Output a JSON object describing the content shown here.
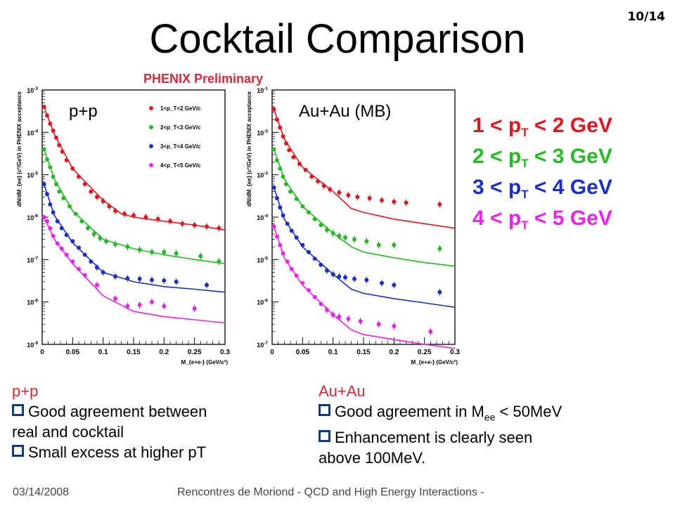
{
  "slide": {
    "title": "Cocktail Comparison",
    "page": "10/14",
    "preliminary": "PHENIX Preliminary"
  },
  "legend_big": [
    {
      "pre": "1 < p",
      "sub": "T",
      "post": " < 2 GeV",
      "color": "#e8141c"
    },
    {
      "pre": "2 < p",
      "sub": "T",
      "post": " < 3 GeV",
      "color": "#22bb22"
    },
    {
      "pre": "3 < p",
      "sub": "T",
      "post": " < 4 GeV",
      "color": "#1a2fc9"
    },
    {
      "pre": "4 < p",
      "sub": "T",
      "post": " < 5 GeV",
      "color": "#ee22ee"
    }
  ],
  "bottom_left": {
    "heading": "p+p",
    "bullets": [
      "Good agreement between",
      "Small excess at higher pT"
    ],
    "continuation": "real and cocktail"
  },
  "bottom_right": {
    "heading": "Au+Au",
    "bullet1_pre": "Good agreement in M",
    "bullet1_sub": "ee",
    "bullet1_post": " < 50MeV",
    "bullet2": "Enhancement is clearly seen",
    "continuation": "above 100MeV."
  },
  "footer": {
    "date": "03/14/2008",
    "conference": "Rencontres de Moriond - QCD and High Energy Interactions -"
  },
  "chart_data": [
    {
      "type": "scatter",
      "label": "p+p",
      "xlabel": "M_{e+e-} (GeV/c²)",
      "ylabel": "dN/dM_{ee} (c²/GeV) in PHENIX acceptance",
      "xlim": [
        0,
        0.3
      ],
      "ylim": [
        1e-09,
        0.001
      ],
      "log_y": true,
      "x_ticks": [
        "0",
        "0.05",
        "0.1",
        "0.15",
        "0.2",
        "0.25",
        "0.3"
      ],
      "y_ticks": [
        "10^-9",
        "10^-8",
        "10^-7",
        "10^-6",
        "10^-5",
        "10^-4",
        "10^-3"
      ],
      "legend_entries": [
        "1<p_T<2 GeV/c",
        "2<p_T<3 GeV/c",
        "3<p_T<4 GeV/c",
        "4<p_T<5 GeV/c"
      ],
      "legend_placement": "top-right",
      "series": [
        {
          "name": "1<p_T<2 GeV/c",
          "color": "#e8141c",
          "x": [
            0.003,
            0.008,
            0.013,
            0.018,
            0.023,
            0.028,
            0.033,
            0.04,
            0.05,
            0.06,
            0.07,
            0.08,
            0.09,
            0.1,
            0.11,
            0.12,
            0.135,
            0.15,
            0.17,
            0.19,
            0.21,
            0.23,
            0.25,
            0.27,
            0.29
          ],
          "y": [
            0.0004,
            0.00025,
            0.00016,
            0.00011,
            7.5e-05,
            5e-05,
            3.5e-05,
            2.2e-05,
            1.4e-05,
            9e-06,
            6e-06,
            4e-06,
            3e-06,
            2.4e-06,
            1.8e-06,
            1.4e-06,
            1.2e-06,
            1.1e-06,
            1e-06,
            9e-07,
            8e-07,
            7e-07,
            6.5e-07,
            6e-07,
            5.5e-07
          ],
          "cocktail": [
            [
              0.003,
              0.0004
            ],
            [
              0.02,
              9e-05
            ],
            [
              0.05,
              1.4e-05
            ],
            [
              0.1,
              2.5e-06
            ],
            [
              0.13,
              1.2e-06
            ],
            [
              0.15,
              1e-06
            ],
            [
              0.2,
              8e-07
            ],
            [
              0.25,
              6.5e-07
            ],
            [
              0.3,
              5e-07
            ]
          ]
        },
        {
          "name": "2<p_T<3 GeV/c",
          "color": "#22bb22",
          "x": [
            0.003,
            0.008,
            0.013,
            0.018,
            0.023,
            0.028,
            0.035,
            0.045,
            0.055,
            0.065,
            0.075,
            0.085,
            0.095,
            0.105,
            0.12,
            0.14,
            0.16,
            0.18,
            0.2,
            0.22,
            0.26,
            0.29
          ],
          "y": [
            4e-05,
            2.3e-05,
            1.5e-05,
            9e-06,
            6e-06,
            4e-06,
            2.8e-06,
            1.8e-06,
            1.2e-06,
            8e-07,
            5.5e-07,
            4e-07,
            3.2e-07,
            2.7e-07,
            2.3e-07,
            2e-07,
            1.7e-07,
            1.5e-07,
            1.5e-07,
            1.4e-07,
            1.2e-07,
            9e-08
          ],
          "cocktail": [
            [
              0.003,
              4e-05
            ],
            [
              0.02,
              8e-06
            ],
            [
              0.05,
              1.4e-06
            ],
            [
              0.1,
              3e-07
            ],
            [
              0.15,
              1.8e-07
            ],
            [
              0.2,
              1.3e-07
            ],
            [
              0.25,
              1e-07
            ],
            [
              0.3,
              8e-08
            ]
          ]
        },
        {
          "name": "3<p_T<4 GeV/c",
          "color": "#1a2fc9",
          "x": [
            0.003,
            0.008,
            0.013,
            0.018,
            0.025,
            0.032,
            0.04,
            0.05,
            0.06,
            0.07,
            0.08,
            0.09,
            0.1,
            0.12,
            0.14,
            0.16,
            0.18,
            0.2,
            0.22,
            0.27
          ],
          "y": [
            6e-06,
            3.5e-06,
            2e-06,
            1.3e-06,
            8e-07,
            5.5e-07,
            3.8e-07,
            2.7e-07,
            1.9e-07,
            1.3e-07,
            9e-08,
            6.5e-08,
            5e-08,
            4e-08,
            3.6e-08,
            3.5e-08,
            3.3e-08,
            3.2e-08,
            3e-08,
            2.5e-08
          ],
          "cocktail": [
            [
              0.003,
              6e-06
            ],
            [
              0.02,
              1.1e-06
            ],
            [
              0.05,
              2.5e-07
            ],
            [
              0.1,
              5e-08
            ],
            [
              0.15,
              3e-08
            ],
            [
              0.2,
              2.3e-08
            ],
            [
              0.25,
              2e-08
            ],
            [
              0.3,
              1.7e-08
            ]
          ]
        },
        {
          "name": "4<p_T<5 GeV/c",
          "color": "#ee22ee",
          "x": [
            0.003,
            0.008,
            0.013,
            0.018,
            0.025,
            0.032,
            0.04,
            0.05,
            0.06,
            0.07,
            0.09,
            0.12,
            0.14,
            0.16,
            0.18,
            0.2,
            0.25
          ],
          "y": [
            1e-06,
            8e-07,
            5.5e-07,
            3.6e-07,
            2.4e-07,
            1.8e-07,
            1.3e-07,
            9e-08,
            6e-08,
            4.3e-08,
            2.5e-08,
            1.2e-08,
            8e-09,
            8.5e-09,
            1e-08,
            8e-09,
            7e-09
          ],
          "cocktail": [
            [
              0.003,
              1e-06
            ],
            [
              0.02,
              3e-07
            ],
            [
              0.05,
              8e-08
            ],
            [
              0.1,
              1.4e-08
            ],
            [
              0.15,
              6e-09
            ],
            [
              0.2,
              4.5e-09
            ],
            [
              0.25,
              3.8e-09
            ],
            [
              0.3,
              3.2e-09
            ]
          ]
        }
      ]
    },
    {
      "type": "scatter",
      "label": "Au+Au (MB)",
      "xlabel": "M_{e+e-} (GeV/c²)",
      "ylabel": "dN/dM_{ee} (c²/GeV) in PHENIX acceptance",
      "xlim": [
        0,
        0.3
      ],
      "ylim": [
        1e-07,
        0.1
      ],
      "log_y": true,
      "x_ticks": [
        "0",
        "0.05",
        "0.1",
        "0.15",
        "0.2",
        "0.25",
        "0.3"
      ],
      "y_ticks": [
        "10^-7",
        "10^-6",
        "10^-5",
        "10^-4",
        "10^-3",
        "10^-2",
        "10^-1"
      ],
      "series": [
        {
          "name": "1<p_T<2 GeV/c",
          "color": "#e8141c",
          "x": [
            0.003,
            0.008,
            0.013,
            0.018,
            0.023,
            0.028,
            0.035,
            0.045,
            0.055,
            0.065,
            0.075,
            0.085,
            0.095,
            0.11,
            0.125,
            0.14,
            0.16,
            0.18,
            0.2,
            0.22,
            0.275
          ],
          "y": [
            0.035,
            0.02,
            0.013,
            0.008,
            0.0055,
            0.0038,
            0.0026,
            0.0018,
            0.0013,
            0.0009,
            0.0007,
            0.00055,
            0.00045,
            0.00038,
            0.00033,
            0.0003,
            0.00028,
            0.00025,
            0.00023,
            0.00022,
            0.0002
          ],
          "cocktail": [
            [
              0.003,
              0.035
            ],
            [
              0.02,
              0.007
            ],
            [
              0.05,
              0.0015
            ],
            [
              0.1,
              0.0004
            ],
            [
              0.13,
              0.00016
            ],
            [
              0.15,
              0.00013
            ],
            [
              0.2,
              9e-05
            ],
            [
              0.25,
              7e-05
            ],
            [
              0.3,
              5.5e-05
            ]
          ]
        },
        {
          "name": "2<p_T<3 GeV/c",
          "color": "#22bb22",
          "x": [
            0.003,
            0.008,
            0.013,
            0.018,
            0.023,
            0.03,
            0.04,
            0.05,
            0.06,
            0.07,
            0.08,
            0.09,
            0.1,
            0.11,
            0.12,
            0.135,
            0.155,
            0.175,
            0.2,
            0.275
          ],
          "y": [
            0.004,
            0.0022,
            0.0014,
            0.0009,
            0.0006,
            0.0004,
            0.00027,
            0.00018,
            0.00013,
            9e-05,
            6.5e-05,
            5e-05,
            4.2e-05,
            3.6e-05,
            3.3e-05,
            3e-05,
            2.7e-05,
            2.2e-05,
            2.2e-05,
            1.8e-05
          ],
          "cocktail": [
            [
              0.003,
              0.004
            ],
            [
              0.02,
              0.0008
            ],
            [
              0.05,
              0.00018
            ],
            [
              0.1,
              4.2e-05
            ],
            [
              0.13,
              2e-05
            ],
            [
              0.15,
              1.5e-05
            ],
            [
              0.2,
              1.1e-05
            ],
            [
              0.25,
              8.5e-06
            ],
            [
              0.3,
              7e-06
            ]
          ]
        },
        {
          "name": "3<p_T<4 GeV/c",
          "color": "#1a2fc9",
          "x": [
            0.003,
            0.008,
            0.013,
            0.018,
            0.025,
            0.032,
            0.04,
            0.05,
            0.06,
            0.07,
            0.08,
            0.09,
            0.1,
            0.11,
            0.12,
            0.135,
            0.155,
            0.18,
            0.2,
            0.275
          ],
          "y": [
            0.0005,
            0.00028,
            0.00017,
            0.00011,
            7e-05,
            4.8e-05,
            3.3e-05,
            2.2e-05,
            1.5e-05,
            1.05e-05,
            7.5e-06,
            5.5e-06,
            4.5e-06,
            4e-06,
            3.8e-06,
            3.5e-06,
            3.3e-06,
            2.8e-06,
            2.5e-06,
            1.7e-06
          ],
          "cocktail": [
            [
              0.003,
              0.0005
            ],
            [
              0.02,
              9e-05
            ],
            [
              0.05,
              2e-05
            ],
            [
              0.1,
              4.5e-06
            ],
            [
              0.13,
              2e-06
            ],
            [
              0.15,
              1.6e-06
            ],
            [
              0.2,
              1.2e-06
            ],
            [
              0.25,
              9.5e-07
            ],
            [
              0.3,
              7.5e-07
            ]
          ]
        },
        {
          "name": "4<p_T<5 GeV/c",
          "color": "#ee22ee",
          "x": [
            0.003,
            0.008,
            0.013,
            0.018,
            0.025,
            0.032,
            0.04,
            0.05,
            0.06,
            0.07,
            0.08,
            0.09,
            0.1,
            0.11,
            0.125,
            0.145,
            0.175,
            0.2,
            0.26
          ],
          "y": [
            6e-05,
            3.5e-05,
            2.2e-05,
            1.4e-05,
            9e-06,
            6e-06,
            4.2e-06,
            2.8e-06,
            1.9e-06,
            1.3e-06,
            9e-07,
            6.5e-07,
            5e-07,
            4.5e-07,
            4e-07,
            3.5e-07,
            3e-07,
            2.7e-07,
            2e-07
          ],
          "cocktail": [
            [
              0.003,
              6e-05
            ],
            [
              0.02,
              1.1e-05
            ],
            [
              0.05,
              2.5e-06
            ],
            [
              0.1,
              5e-07
            ],
            [
              0.13,
              2.2e-07
            ],
            [
              0.15,
              1.7e-07
            ],
            [
              0.2,
              1.3e-07
            ],
            [
              0.25,
              1e-07
            ],
            [
              0.3,
              8e-08
            ]
          ]
        }
      ]
    }
  ]
}
